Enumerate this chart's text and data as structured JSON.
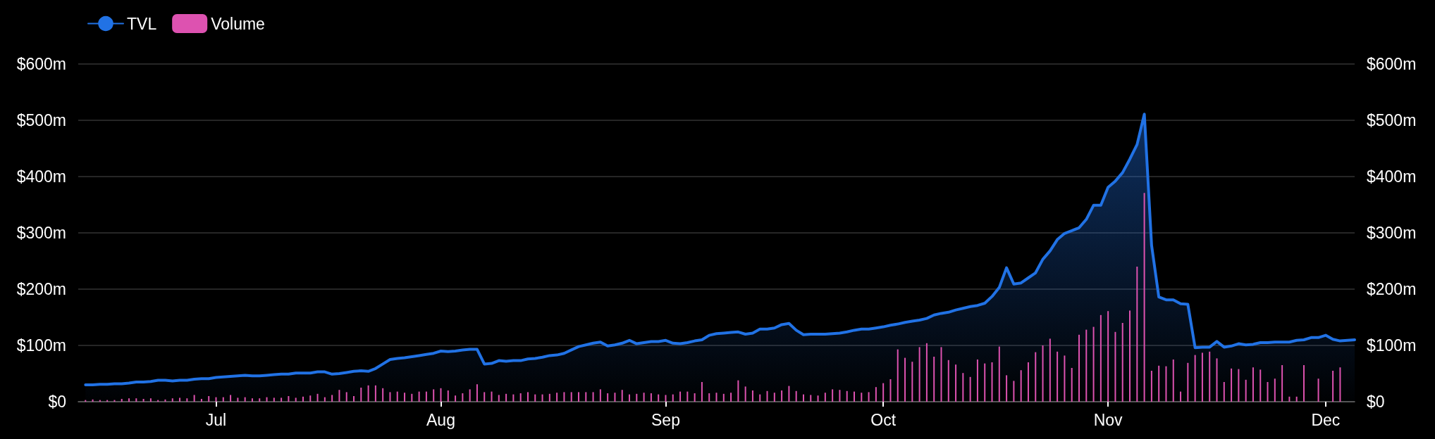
{
  "chart_data": {
    "type": "area",
    "x": [
      "--06-13",
      "--06-14",
      "--06-15",
      "--06-16",
      "--06-17",
      "--06-18",
      "--06-19",
      "--06-20",
      "--06-21",
      "--06-22",
      "--06-23",
      "--06-24",
      "--06-25",
      "--06-26",
      "--06-27",
      "--06-28",
      "--06-29",
      "--06-30",
      "--07-01",
      "--07-02",
      "--07-03",
      "--07-04",
      "--07-05",
      "--07-06",
      "--07-07",
      "--07-08",
      "--07-09",
      "--07-10",
      "--07-11",
      "--07-12",
      "--07-13",
      "--07-14",
      "--07-15",
      "--07-16",
      "--07-17",
      "--07-18",
      "--07-19",
      "--07-20",
      "--07-21",
      "--07-22",
      "--07-23",
      "--07-24",
      "--07-25",
      "--07-26",
      "--07-27",
      "--07-28",
      "--07-29",
      "--07-30",
      "--07-31",
      "--08-01",
      "--08-02",
      "--08-03",
      "--08-04",
      "--08-05",
      "--08-06",
      "--08-07",
      "--08-08",
      "--08-09",
      "--08-10",
      "--08-11",
      "--08-12",
      "--08-13",
      "--08-14",
      "--08-15",
      "--08-16",
      "--08-17",
      "--08-18",
      "--08-19",
      "--08-20",
      "--08-21",
      "--08-22",
      "--08-23",
      "--08-24",
      "--08-25",
      "--08-26",
      "--08-27",
      "--08-28",
      "--08-29",
      "--08-30",
      "--08-31",
      "--09-01",
      "--09-02",
      "--09-03",
      "--09-04",
      "--09-05",
      "--09-06",
      "--09-07",
      "--09-08",
      "--09-09",
      "--09-10",
      "--09-11",
      "--09-12",
      "--09-13",
      "--09-14",
      "--09-15",
      "--09-16",
      "--09-17",
      "--09-18",
      "--09-19",
      "--09-20",
      "--09-21",
      "--09-22",
      "--09-23",
      "--09-24",
      "--09-25",
      "--09-26",
      "--09-27",
      "--09-28",
      "--09-29",
      "--09-30",
      "--10-01",
      "--10-02",
      "--10-03",
      "--10-04",
      "--10-05",
      "--10-06",
      "--10-07",
      "--10-08",
      "--10-09",
      "--10-10",
      "--10-11",
      "--10-12",
      "--10-13",
      "--10-14",
      "--10-15",
      "--10-16",
      "--10-17",
      "--10-18",
      "--10-19",
      "--10-20",
      "--10-21",
      "--10-22",
      "--10-23",
      "--10-24",
      "--10-25",
      "--10-26",
      "--10-27",
      "--10-28",
      "--10-29",
      "--10-30",
      "--10-31",
      "--11-01",
      "--11-02",
      "--11-03",
      "--11-04",
      "--11-05",
      "--11-06",
      "--11-07",
      "--11-08",
      "--11-09",
      "--11-10",
      "--11-11",
      "--11-12",
      "--11-13",
      "--11-14",
      "--11-15",
      "--11-16",
      "--11-17",
      "--11-18",
      "--11-19",
      "--11-20",
      "--11-21",
      "--11-22",
      "--11-23",
      "--11-24",
      "--11-25",
      "--11-26",
      "--11-27",
      "--11-28",
      "--11-29",
      "--11-30",
      "--12-01",
      "--12-02",
      "--12-03",
      "--12-04",
      "--12-05"
    ],
    "series": [
      {
        "name": "TVL",
        "color": "#2172e5",
        "values": [
          30,
          30,
          31,
          31,
          32,
          32,
          33,
          35,
          35,
          36,
          38,
          38,
          37,
          38,
          38,
          40,
          41,
          41,
          43,
          44,
          45,
          46,
          47,
          46,
          46,
          47,
          48,
          49,
          49,
          51,
          51,
          51,
          53,
          53,
          49,
          50,
          52,
          54,
          55,
          54,
          59,
          67,
          75,
          77,
          78,
          80,
          82,
          84,
          86,
          90,
          89,
          90,
          92,
          93,
          93,
          67,
          68,
          73,
          72,
          73,
          73,
          76,
          77,
          79,
          82,
          83,
          86,
          92,
          98,
          101,
          104,
          106,
          99,
          101,
          104,
          109,
          103,
          105,
          107,
          107,
          109,
          104,
          103,
          105,
          108,
          110,
          118,
          121,
          122,
          123,
          124,
          120,
          122,
          129,
          129,
          131,
          137,
          139,
          127,
          119,
          120,
          120,
          120,
          121,
          122,
          124,
          127,
          129,
          129,
          131,
          133,
          136,
          138,
          141,
          143,
          145,
          148,
          154,
          157,
          159,
          163,
          166,
          169,
          171,
          175,
          187,
          203,
          238,
          209,
          211,
          220,
          229,
          253,
          268,
          288,
          299,
          304,
          309,
          324,
          349,
          349,
          381,
          392,
          407,
          431,
          457,
          511,
          278,
          186,
          181,
          181,
          174,
          173,
          96,
          97,
          97,
          107,
          97,
          99,
          103,
          101,
          102,
          105,
          105,
          106,
          106,
          106,
          109,
          110,
          114,
          114,
          118,
          111,
          108,
          109,
          110
        ]
      },
      {
        "name": "Volume",
        "type": "bar",
        "color": "#dd52b0",
        "values": [
          3,
          4,
          3,
          3,
          3,
          5,
          6,
          6,
          5,
          6,
          3,
          4,
          6,
          7,
          6,
          12,
          5,
          10,
          8,
          8,
          12,
          7,
          8,
          6,
          6,
          8,
          7,
          7,
          10,
          7,
          9,
          11,
          14,
          8,
          12,
          21,
          17,
          10,
          25,
          29,
          29,
          24,
          17,
          18,
          16,
          14,
          18,
          18,
          22,
          24,
          20,
          11,
          15,
          22,
          31,
          17,
          18,
          12,
          14,
          13,
          15,
          17,
          13,
          13,
          14,
          16,
          17,
          17,
          17,
          17,
          17,
          22,
          15,
          16,
          21,
          13,
          14,
          16,
          15,
          13,
          12,
          13,
          18,
          18,
          15,
          35,
          15,
          16,
          14,
          16,
          38,
          27,
          20,
          13,
          19,
          16,
          20,
          28,
          19,
          13,
          12,
          11,
          16,
          22,
          21,
          19,
          18,
          16,
          17,
          26,
          33,
          40,
          93,
          78,
          71,
          97,
          104,
          80,
          97,
          74,
          66,
          51,
          44,
          75,
          68,
          70,
          98,
          47,
          37,
          56,
          70,
          88,
          100,
          112,
          89,
          82,
          60,
          119,
          128,
          133,
          154,
          161,
          124,
          140,
          162,
          240,
          371,
          55,
          64,
          63,
          75,
          18,
          69,
          83,
          87,
          89,
          77,
          35,
          59,
          58,
          39,
          61,
          57,
          35,
          41,
          65,
          9,
          9,
          65,
          null,
          41,
          null,
          55,
          61,
          null,
          null
        ]
      }
    ],
    "xlim": [
      "--06-12",
      "--12-05"
    ],
    "xticks": [
      {
        "value": "--07-01",
        "label": "Jul"
      },
      {
        "value": "--08-01",
        "label": "Aug"
      },
      {
        "value": "--09-01",
        "label": "Sep"
      },
      {
        "value": "--10-01",
        "label": "Oct"
      },
      {
        "value": "--11-01",
        "label": "Nov"
      },
      {
        "value": "--12-01",
        "label": "Dec"
      }
    ],
    "ylim": [
      0,
      600
    ],
    "yticks": [
      {
        "value": 0,
        "label": "$0"
      },
      {
        "value": 100,
        "label": "$100m"
      },
      {
        "value": 200,
        "label": "$200m"
      },
      {
        "value": 300,
        "label": "$300m"
      },
      {
        "value": 400,
        "label": "$400m"
      },
      {
        "value": 500,
        "label": "$500m"
      },
      {
        "value": 600,
        "label": "$600m"
      }
    ],
    "y2lim": [
      0,
      600
    ],
    "y2ticks": [
      {
        "value": 0,
        "label": "$0"
      },
      {
        "value": 100,
        "label": "$100m"
      },
      {
        "value": 200,
        "label": "$200m"
      },
      {
        "value": 300,
        "label": "$300m"
      },
      {
        "value": 400,
        "label": "$400m"
      },
      {
        "value": 500,
        "label": "$500m"
      },
      {
        "value": 600,
        "label": "$600m"
      }
    ],
    "grid": "y",
    "legend": "top left"
  }
}
